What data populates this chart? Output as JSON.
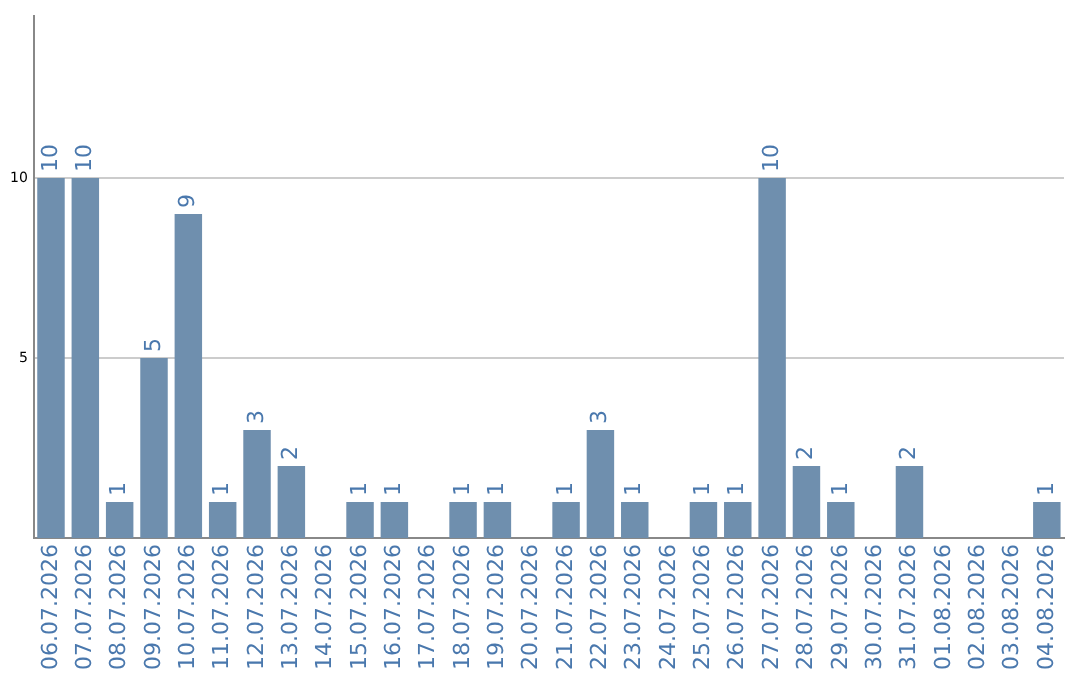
{
  "chart_data": {
    "type": "bar",
    "categories": [
      "06.07.2026",
      "07.07.2026",
      "08.07.2026",
      "09.07.2026",
      "10.07.2026",
      "11.07.2026",
      "12.07.2026",
      "13.07.2026",
      "14.07.2026",
      "15.07.2026",
      "16.07.2026",
      "17.07.2026",
      "18.07.2026",
      "19.07.2026",
      "20.07.2026",
      "21.07.2026",
      "22.07.2026",
      "23.07.2026",
      "24.07.2026",
      "25.07.2026",
      "26.07.2026",
      "27.07.2026",
      "28.07.2026",
      "29.07.2026",
      "30.07.2026",
      "31.07.2026",
      "01.08.2026",
      "02.08.2026",
      "03.08.2026",
      "04.08.2026"
    ],
    "values": [
      10,
      10,
      1,
      5,
      9,
      1,
      3,
      2,
      0,
      1,
      1,
      0,
      1,
      1,
      0,
      1,
      3,
      1,
      0,
      1,
      1,
      10,
      2,
      1,
      0,
      2,
      0,
      0,
      0,
      1
    ],
    "value_labels": [
      "10",
      "10",
      "1",
      "5",
      "9",
      "1",
      "3",
      "2",
      null,
      "1",
      "1",
      null,
      "1",
      "1",
      null,
      "1",
      "3",
      "1",
      null,
      "1",
      "1",
      "10",
      "2",
      "1",
      null,
      "2",
      null,
      null,
      null,
      "1"
    ],
    "color": "#6f8fae",
    "ylim": [
      0,
      14.5
    ],
    "yticks": [
      5,
      10
    ],
    "grid": "y"
  }
}
